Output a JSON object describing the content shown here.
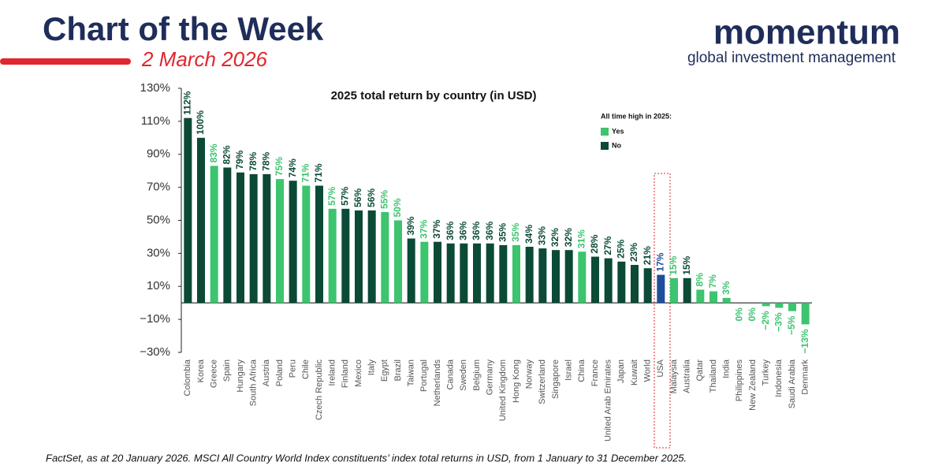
{
  "header": {
    "title": "Chart of the Week",
    "date": "2 March 2026",
    "logo": "momentum",
    "logo_subtitle": "global investment management"
  },
  "chart_data": {
    "type": "bar",
    "title": "2025 total return by country (in USD)",
    "categories": [
      "Colombia",
      "Korea",
      "Greece",
      "Spain",
      "Hungary",
      "South Africa",
      "Austria",
      "Poland",
      "Peru",
      "Chile",
      "Czech Republic",
      "Ireland",
      "Finland",
      "Mexico",
      "Italy",
      "Egypt",
      "Brazil",
      "Taiwan",
      "Portugal",
      "Netherlands",
      "Canada",
      "Sweden",
      "Belgium",
      "Germany",
      "United Kingdom",
      "Hong Kong",
      "Norway",
      "Switzerland",
      "Singapore",
      "Israel",
      "China",
      "France",
      "United Arab Emirates",
      "Japan",
      "Kuwait",
      "World",
      "USA",
      "Malaysia",
      "Australia",
      "Qatar",
      "Thailand",
      "India",
      "Philippines",
      "New Zealand",
      "Turkey",
      "Indonesia",
      "Saudi Arabia",
      "Denmark"
    ],
    "values": [
      112,
      100,
      83,
      82,
      79,
      78,
      78,
      75,
      74,
      71,
      71,
      57,
      57,
      56,
      56,
      55,
      50,
      39,
      37,
      37,
      36,
      36,
      36,
      36,
      35,
      35,
      34,
      33,
      32,
      32,
      31,
      28,
      27,
      25,
      23,
      21,
      17,
      15,
      15,
      8,
      7,
      3,
      0,
      0,
      -2,
      -3,
      -5,
      -13
    ],
    "value_labels": [
      "112%",
      "100%",
      "83%",
      "82%",
      "79%",
      "78%",
      "78%",
      "75%",
      "74%",
      "71%",
      "71%",
      "57%",
      "57%",
      "56%",
      "56%",
      "55%",
      "50%",
      "39%",
      "37%",
      "37%",
      "36%",
      "36%",
      "36%",
      "36%",
      "35%",
      "35%",
      "34%",
      "33%",
      "32%",
      "32%",
      "31%",
      "28%",
      "27%",
      "25%",
      "23%",
      "21%",
      "17%",
      "15%",
      "15%",
      "8%",
      "7%",
      "3%",
      "0%",
      "0%",
      "−2%",
      "−3%",
      "−5%",
      "−13%"
    ],
    "colors": [
      "#0b4a36",
      "#0b4a36",
      "#3cc46f",
      "#0b4a36",
      "#0b4a36",
      "#0b4a36",
      "#0b4a36",
      "#3cc46f",
      "#0b4a36",
      "#3cc46f",
      "#0b4a36",
      "#3cc46f",
      "#0b4a36",
      "#0b4a36",
      "#0b4a36",
      "#3cc46f",
      "#3cc46f",
      "#0b4a36",
      "#3cc46f",
      "#0b4a36",
      "#0b4a36",
      "#0b4a36",
      "#0b4a36",
      "#0b4a36",
      "#0b4a36",
      "#3cc46f",
      "#0b4a36",
      "#0b4a36",
      "#0b4a36",
      "#0b4a36",
      "#3cc46f",
      "#0b4a36",
      "#0b4a36",
      "#0b4a36",
      "#0b4a36",
      "#0b4a36",
      "#1f4e9c",
      "#3cc46f",
      "#0b4a36",
      "#3cc46f",
      "#3cc46f",
      "#3cc46f",
      "#3cc46f",
      "#3cc46f",
      "#3cc46f",
      "#3cc46f",
      "#3cc46f",
      "#3cc46f"
    ],
    "ylim": [
      -30,
      130
    ],
    "yticks": [
      {
        "value": 130,
        "label": "130%"
      },
      {
        "value": 110,
        "label": "110%"
      },
      {
        "value": 90,
        "label": "90%"
      },
      {
        "value": 70,
        "label": "70%"
      },
      {
        "value": 50,
        "label": "50%"
      },
      {
        "value": 30,
        "label": "30%"
      },
      {
        "value": 10,
        "label": "10%"
      },
      {
        "value": -10,
        "label": "−10%"
      },
      {
        "value": -30,
        "label": "−30%"
      }
    ],
    "legend": {
      "title": "All time high in 2025:",
      "items": [
        {
          "label": "Yes",
          "color": "#3cc46f"
        },
        {
          "label": "No",
          "color": "#0b4a36"
        }
      ]
    },
    "source": "FactSet, as at 20 January 2026. MSCI All Country World Index constituents’ index total returns in USD, from 1 January to 31 December 2025."
  }
}
